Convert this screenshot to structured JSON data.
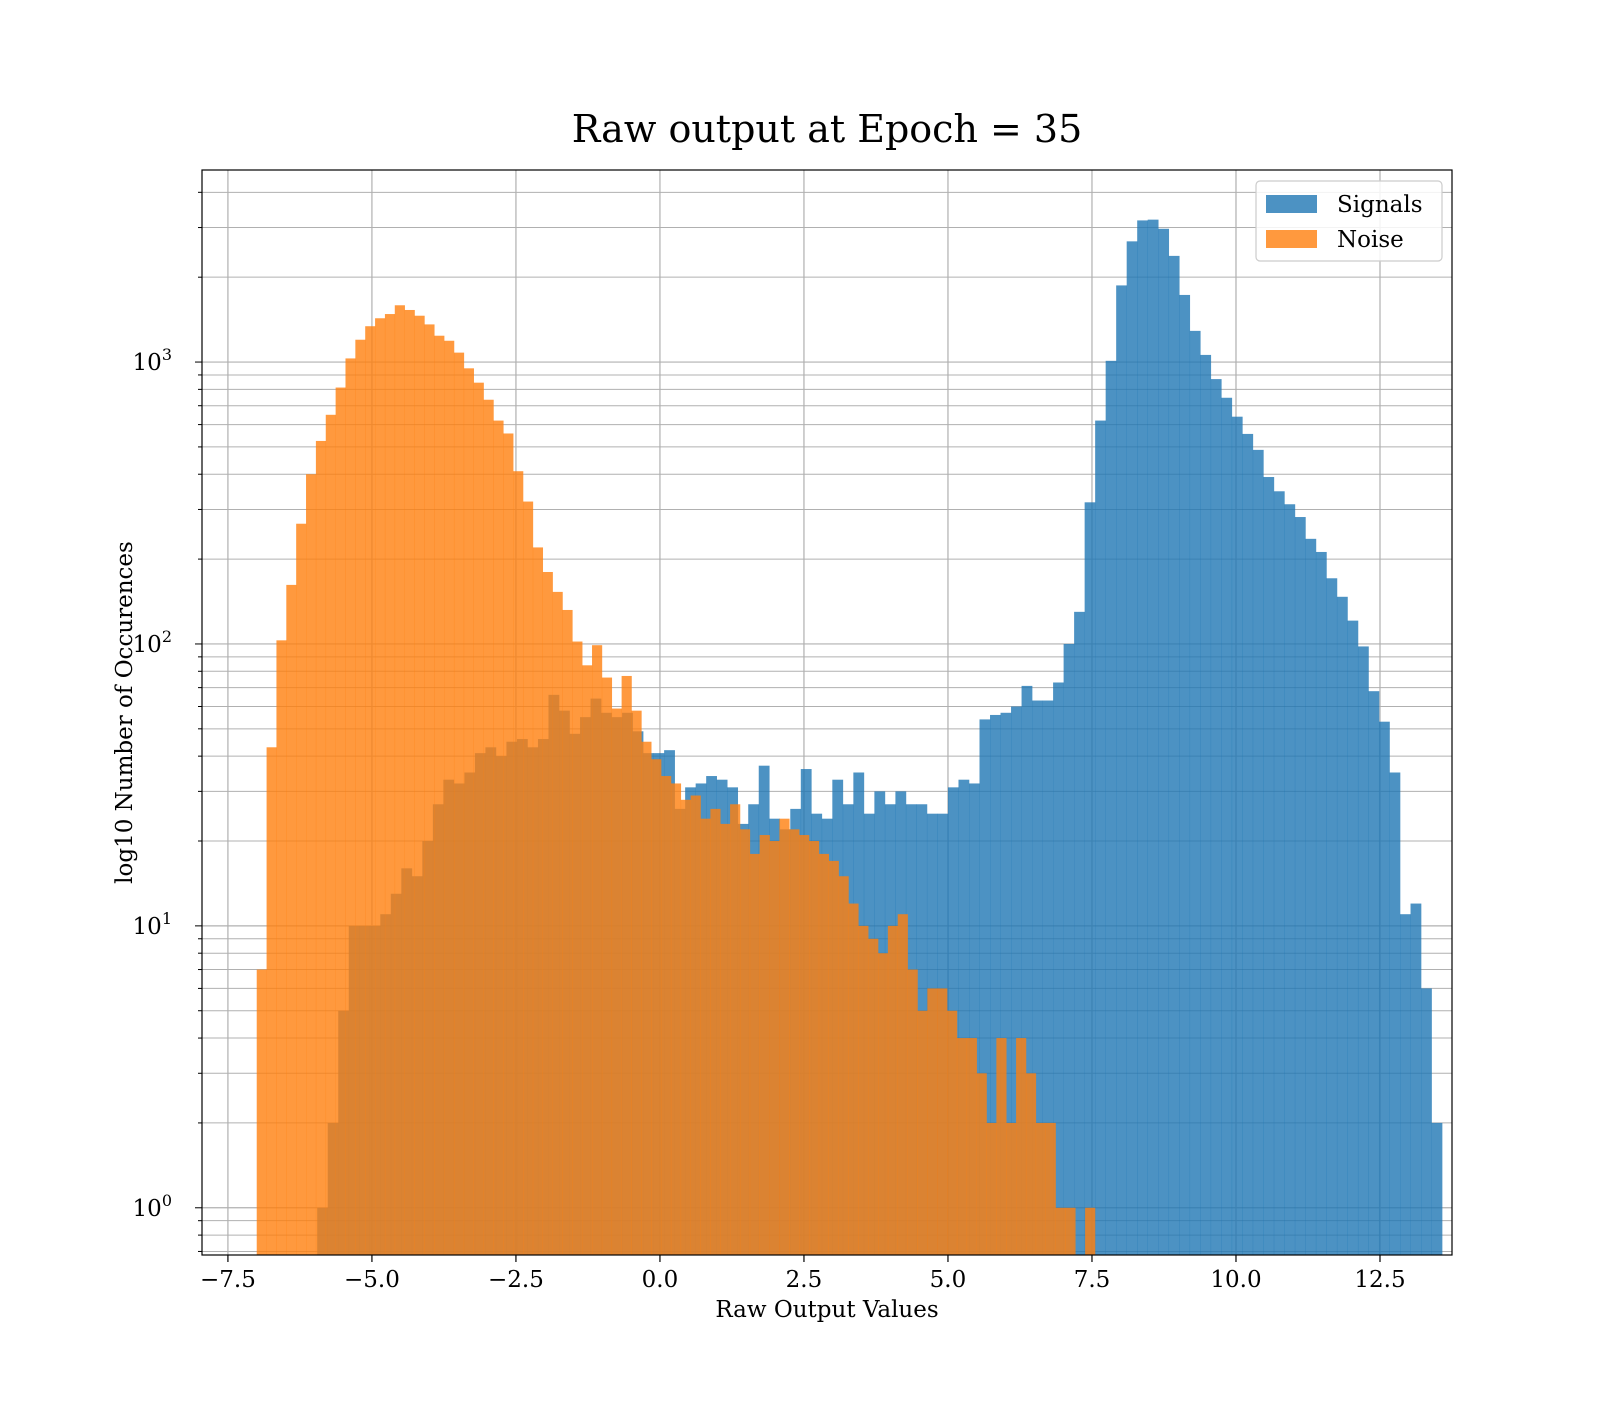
{
  "chart_data": {
    "type": "histogram",
    "title": "Raw output at Epoch = 35",
    "xlabel": "Raw Output Values",
    "ylabel": "log10 Number of Occurences",
    "y_scale": "log",
    "xlim": [
      -7.95,
      13.75
    ],
    "ylim": [
      0.68,
      4800
    ],
    "x_ticks": [
      -7.5,
      -5.0,
      -2.5,
      0.0,
      2.5,
      5.0,
      7.5,
      10.0,
      12.5
    ],
    "x_tick_labels": [
      "−7.5",
      "−5.0",
      "−2.5",
      "0.0",
      "2.5",
      "5.0",
      "7.5",
      "10.0",
      "12.5"
    ],
    "y_ticks": [
      1,
      10,
      100,
      1000
    ],
    "y_tick_labels": [
      {
        "base": "10",
        "exp": "0"
      },
      {
        "base": "10",
        "exp": "3",
        "_v": 1000
      },
      {
        "base": "10",
        "exp": "2",
        "_v": 100
      },
      {
        "base": "10",
        "exp": "1",
        "_v": 10
      }
    ],
    "grid": true,
    "legend_position": "top-right",
    "series": [
      {
        "name": "Signals",
        "color": "#1f77b4",
        "opacity": 0.8,
        "bin_start": -5.95,
        "bin_width": 0.1825,
        "counts": [
          1,
          2,
          5,
          10,
          10,
          10,
          11,
          13,
          16,
          15,
          20,
          27,
          33,
          32,
          35,
          41,
          43,
          40,
          45,
          46,
          43,
          46,
          66,
          58,
          48,
          55,
          64,
          57,
          55,
          57,
          49,
          41,
          41,
          42,
          26,
          31,
          32,
          34,
          33,
          31,
          23,
          27,
          37,
          24,
          22,
          26,
          36,
          25,
          24,
          33,
          27,
          35,
          25,
          30,
          27,
          30,
          27,
          27,
          25,
          25,
          31,
          33,
          32,
          54,
          56,
          57,
          60,
          71,
          63,
          63,
          73,
          100,
          130,
          318,
          620,
          1010,
          1870,
          2680,
          3180,
          3200,
          2970,
          2380,
          1730,
          1290,
          1060,
          870,
          747,
          640,
          556,
          488,
          391,
          348,
          313,
          282,
          236,
          212,
          171,
          147,
          121,
          98,
          68,
          53,
          35,
          11,
          12,
          6,
          2
        ]
      },
      {
        "name": "Noise",
        "color": "#ff7f0e",
        "opacity": 0.8,
        "bin_start": -7.0,
        "bin_width": 0.1712,
        "counts": [
          7,
          43,
          103,
          162,
          267,
          400,
          525,
          650,
          812,
          1030,
          1200,
          1340,
          1430,
          1480,
          1590,
          1530,
          1460,
          1360,
          1240,
          1190,
          1080,
          950,
          845,
          735,
          620,
          558,
          410,
          320,
          220,
          180,
          153,
          132,
          102,
          84,
          99,
          76,
          59,
          77,
          58,
          45,
          39,
          34,
          32,
          28,
          29,
          24,
          26,
          23,
          27,
          22,
          18,
          21,
          20,
          24,
          22,
          21,
          20,
          18,
          17,
          15,
          12,
          10,
          9,
          8,
          10,
          11,
          7,
          5,
          6,
          6,
          5,
          4,
          4,
          3,
          2,
          4,
          2,
          4,
          3,
          2,
          2,
          1,
          1,
          0,
          1,
          0,
          0,
          0
        ]
      }
    ]
  }
}
